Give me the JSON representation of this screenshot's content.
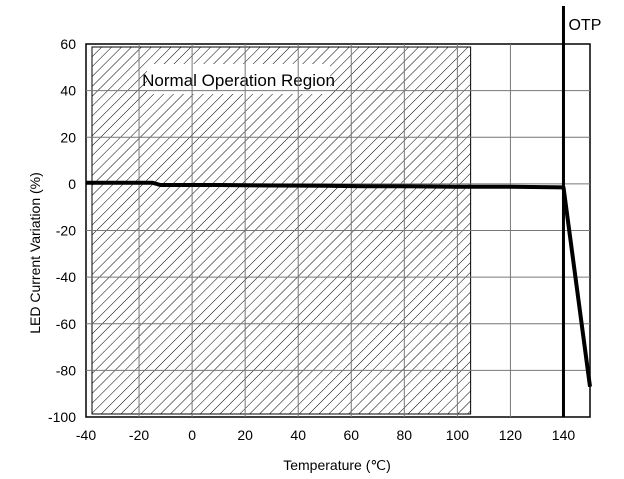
{
  "chart_data": {
    "type": "line",
    "xlabel": "Temperature (℃)",
    "ylabel": "LED Current Variation (%)",
    "xlim": [
      -40,
      150
    ],
    "ylim": [
      -100,
      60
    ],
    "x_ticks": [
      -40,
      -20,
      0,
      20,
      40,
      60,
      80,
      100,
      120,
      140
    ],
    "y_ticks": [
      60,
      40,
      20,
      0,
      -20,
      -40,
      -60,
      -80,
      -100
    ],
    "grid": true,
    "region": {
      "label": "Normal Operation Region",
      "x_range": [
        -40,
        105
      ],
      "y_range": [
        -100,
        60
      ],
      "pattern": "hatched"
    },
    "otp_marker": {
      "label": "OTP",
      "x": 140
    },
    "series": [
      {
        "x": [
          -40,
          -15,
          -12,
          10,
          30,
          50,
          65,
          80,
          100,
          120,
          140,
          150
        ],
        "values": [
          0.5,
          0.5,
          -0.5,
          -0.5,
          -0.7,
          -0.8,
          -1.0,
          -1.0,
          -1.2,
          -1.2,
          -1.5,
          -87
        ]
      }
    ]
  }
}
